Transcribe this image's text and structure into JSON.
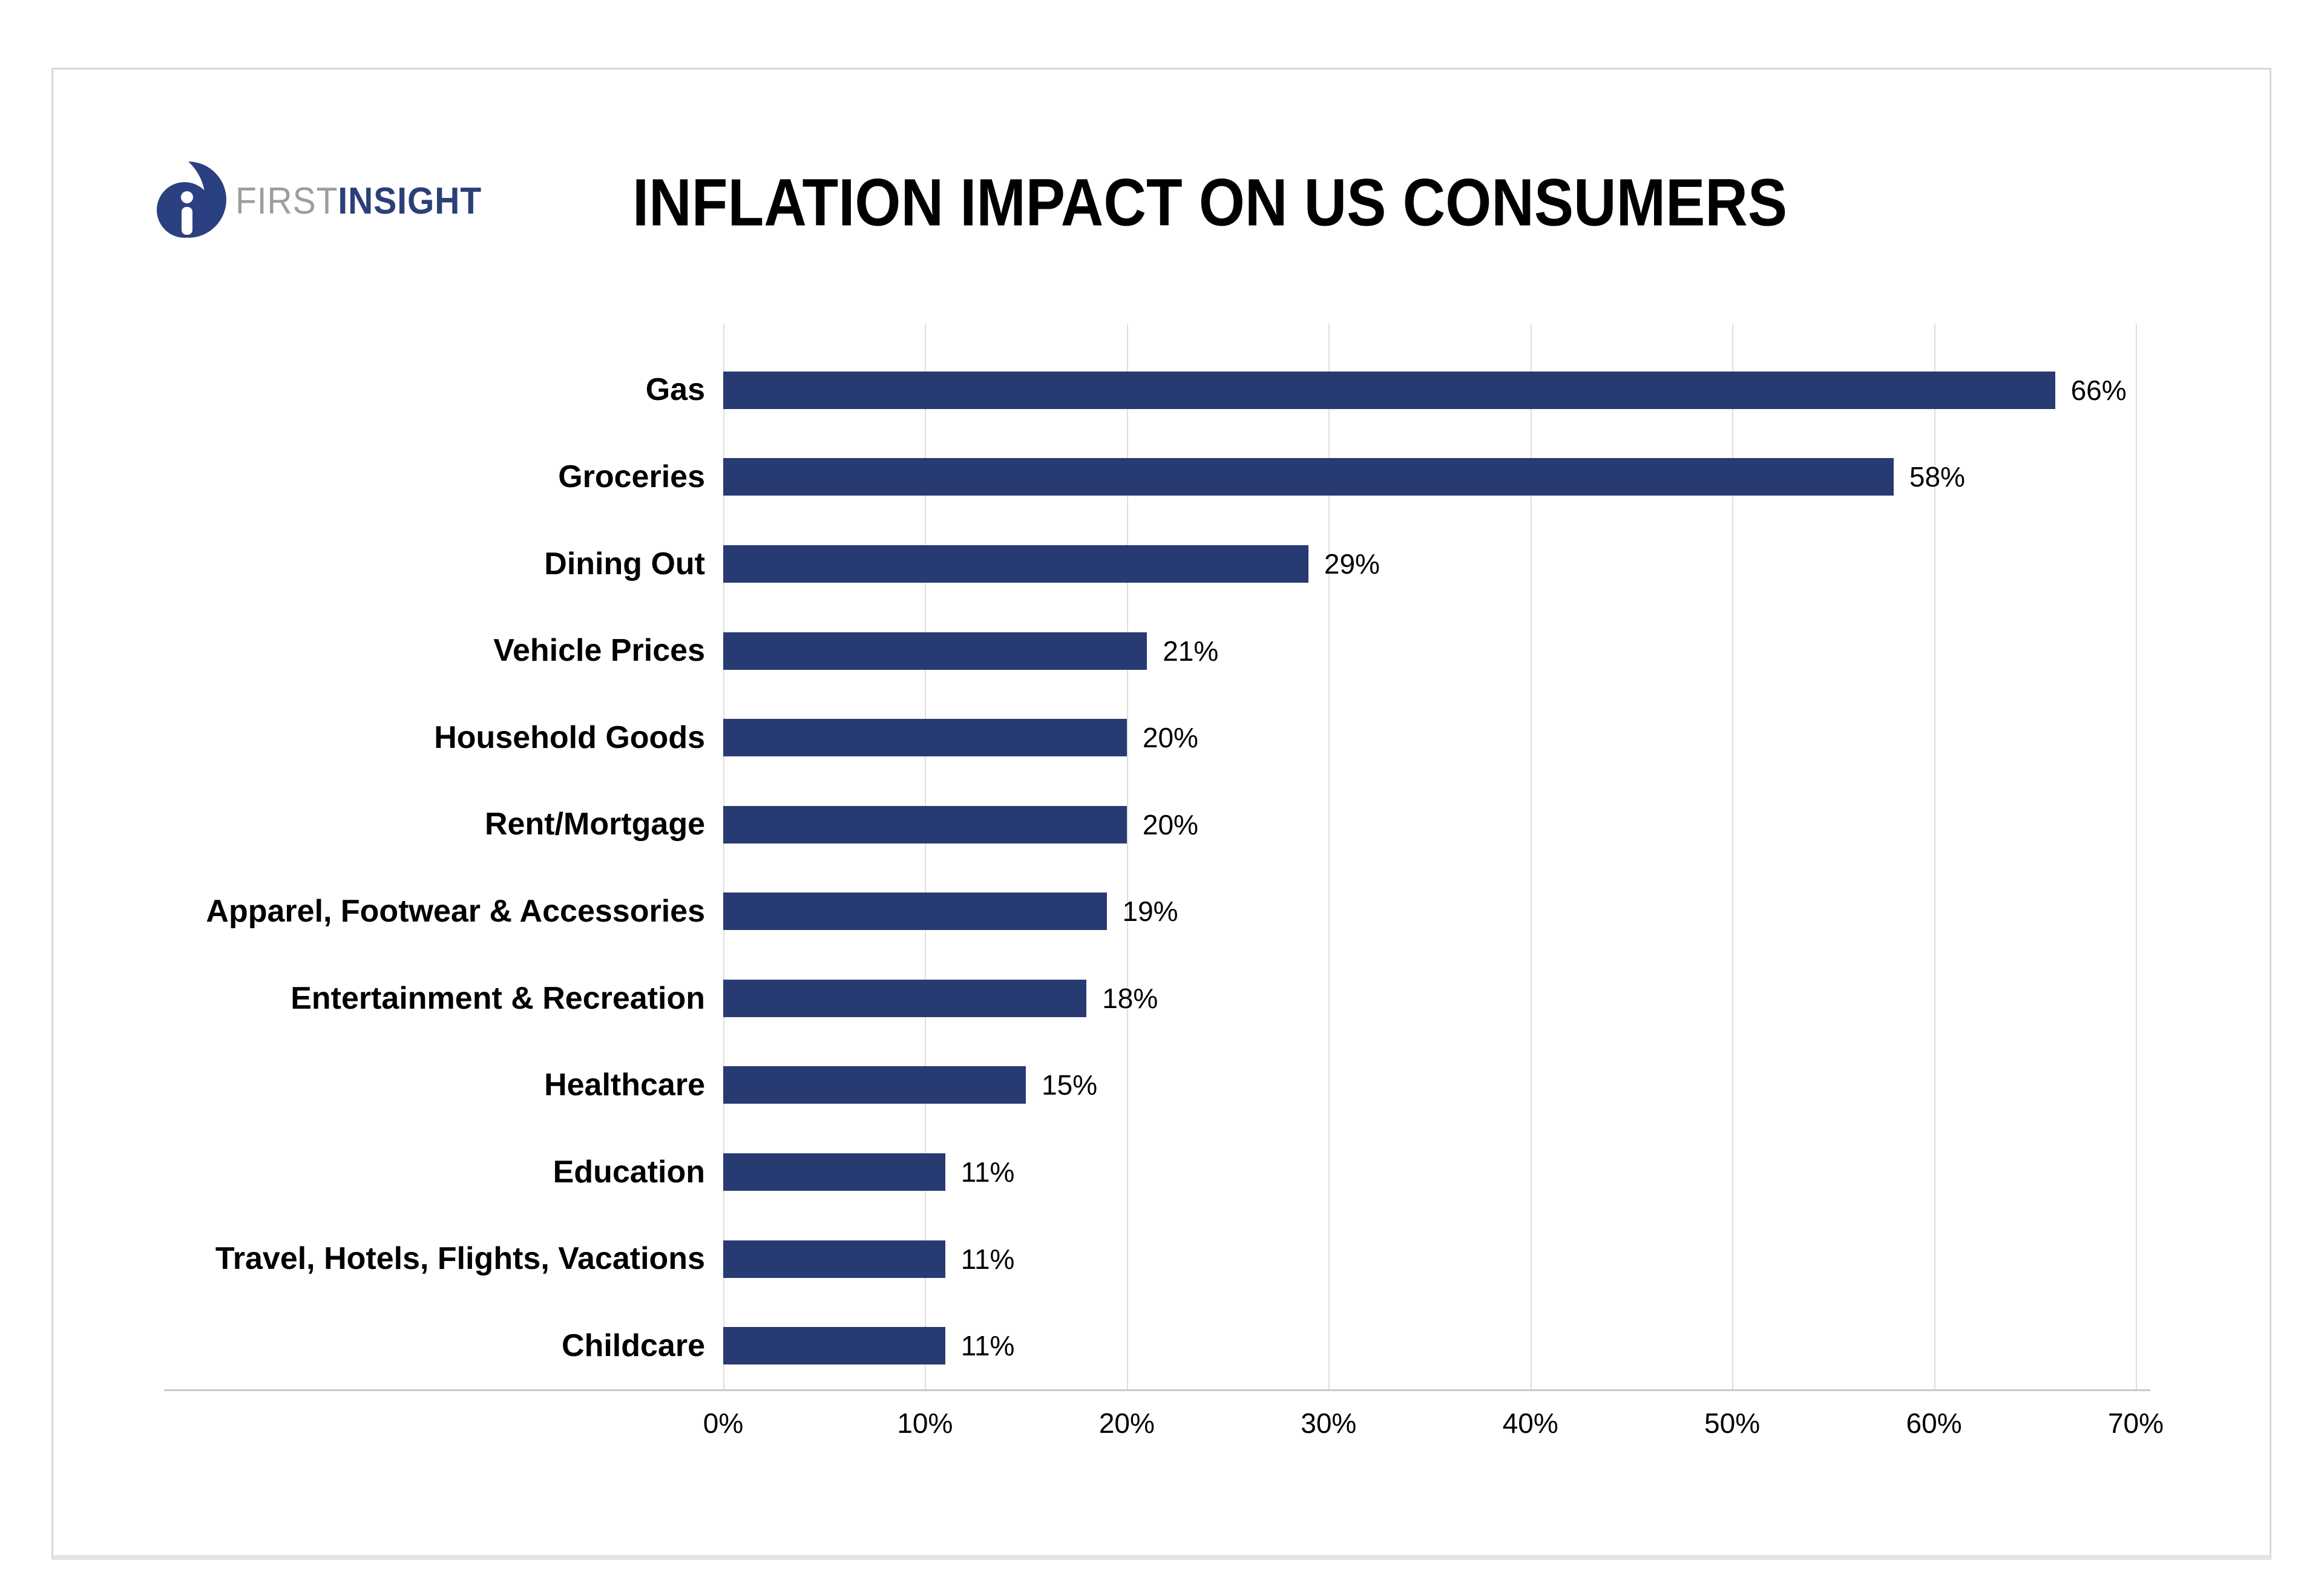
{
  "header": {
    "logo": {
      "first": "FIRST",
      "insight": "INSIGHT",
      "icon": "firstinsight-mark"
    },
    "title": "INFLATION IMPACT ON US CONSUMERS"
  },
  "chart_data": {
    "type": "bar",
    "orientation": "horizontal",
    "title": "INFLATION IMPACT ON US CONSUMERS",
    "categories": [
      "Gas",
      "Groceries",
      "Dining Out",
      "Vehicle Prices",
      "Household Goods",
      "Rent/Mortgage",
      "Apparel, Footwear & Accessories",
      "Entertainment & Recreation",
      "Healthcare",
      "Education",
      "Travel, Hotels, Flights, Vacations",
      "Childcare"
    ],
    "values": [
      66,
      58,
      29,
      21,
      20,
      20,
      19,
      18,
      15,
      11,
      11,
      11
    ],
    "value_labels": [
      "66%",
      "58%",
      "29%",
      "21%",
      "20%",
      "20%",
      "19%",
      "18%",
      "15%",
      "11%",
      "11%",
      "11%"
    ],
    "unit": "%",
    "xlabel": "",
    "ylabel": "",
    "axis": {
      "min": 0,
      "max": 70,
      "ticks": [
        "0%",
        "10%",
        "20%",
        "30%",
        "40%",
        "50%",
        "60%",
        "70%"
      ],
      "gridlines": true
    },
    "legend": "none",
    "bar_color": "#283a72"
  },
  "colors": {
    "bar": "#283a72",
    "gridline": "#dedede",
    "axis_line": "#c9c9c9",
    "card_border": "#d8d8d8",
    "logo_navy": "#2b4080",
    "logo_gray": "#9b9da0",
    "title_text": "#000000"
  }
}
